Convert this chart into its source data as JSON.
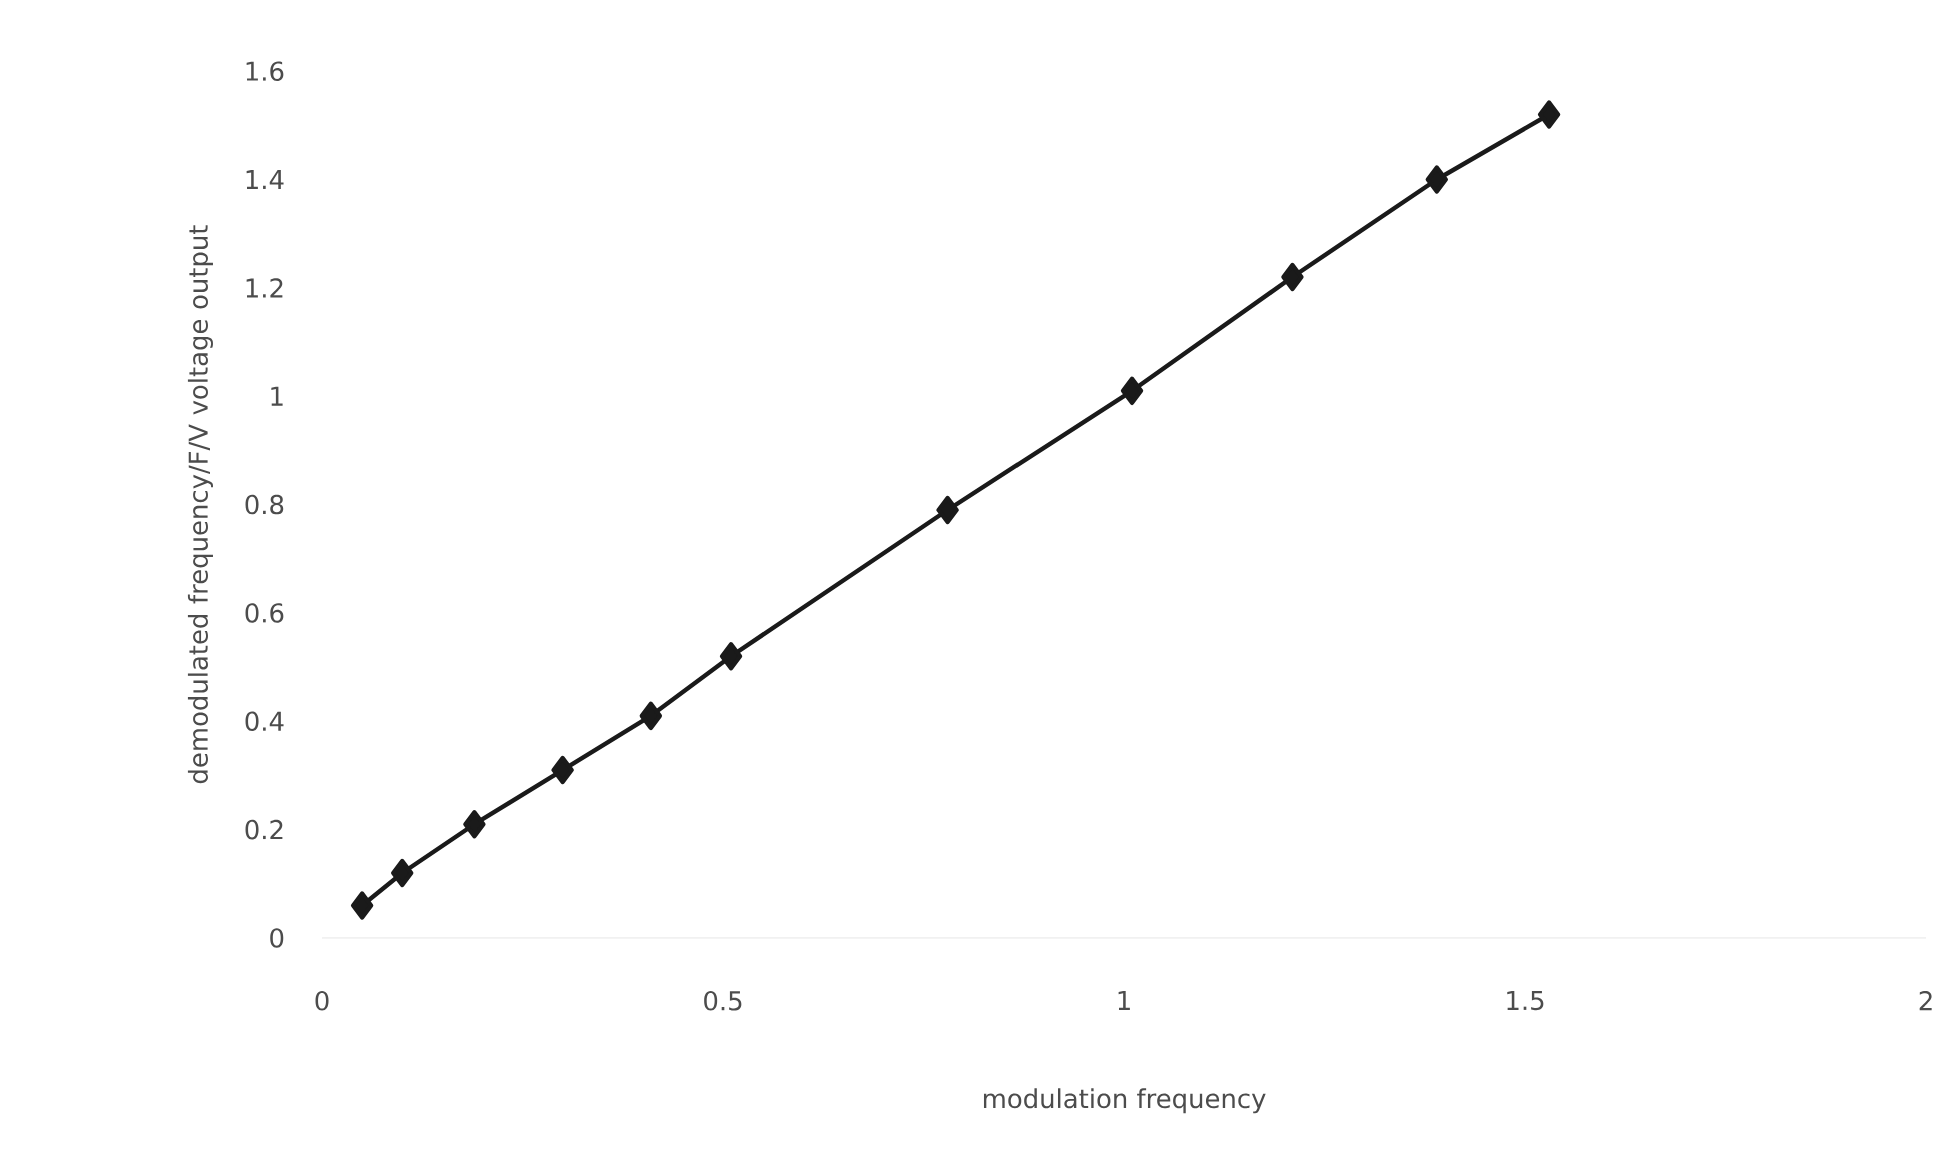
{
  "chart_data": {
    "type": "line",
    "xlabel": "modulation frequency",
    "ylabel": "demodulated frequency/F/V voltage output",
    "x": [
      0.05,
      0.1,
      0.19,
      0.3,
      0.41,
      0.51,
      0.78,
      1.01,
      1.21,
      1.39,
      1.53
    ],
    "series": [
      {
        "color": "#1a1a1a",
        "values": [
          0.06,
          0.12,
          0.21,
          0.31,
          0.41,
          0.52,
          0.79,
          1.01,
          1.22,
          1.4,
          1.52
        ]
      }
    ],
    "xlim": [
      0,
      2
    ],
    "ylim": [
      0,
      1.6
    ],
    "xticks": [
      0,
      0.5,
      1,
      1.5,
      2
    ],
    "yticks": [
      0,
      0.2,
      0.4,
      0.6,
      0.8,
      1,
      1.2,
      1.4,
      1.6
    ],
    "marker": "diamond",
    "line_style": "solid",
    "grid": false,
    "legend": false
  }
}
